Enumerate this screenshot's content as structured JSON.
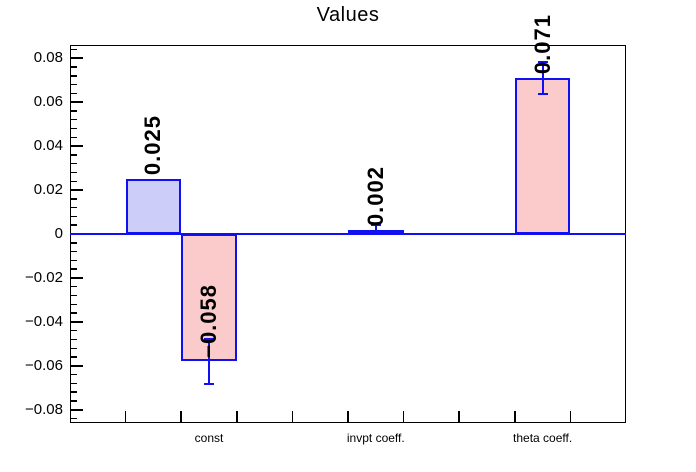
{
  "colors": {
    "bar_line": "#1010f0",
    "blue_fill": "#cdcdfa",
    "pink_fill": "#fbcaca",
    "axis": "#000000",
    "text": "#000000",
    "background": "#ffffff"
  },
  "chart_data": {
    "type": "bar",
    "title": "Values",
    "categories": [
      "const",
      "invpt coeff.",
      "theta coeff."
    ],
    "n_bins": 10,
    "ylim": [
      -0.086,
      0.086
    ],
    "y_major_step": 0.02,
    "y_minor_step": 0.004,
    "baseline_value": 0,
    "grid": false,
    "legend": false,
    "y_tick_labels": [
      {
        "value": 0.08,
        "text": "0.08"
      },
      {
        "value": 0.06,
        "text": "0.06"
      },
      {
        "value": 0.04,
        "text": "0.04"
      },
      {
        "value": 0.02,
        "text": "0.02"
      },
      {
        "value": 0,
        "text": "0"
      },
      {
        "value": -0.02,
        "text": "−0.02"
      },
      {
        "value": -0.04,
        "text": "−0.04"
      },
      {
        "value": -0.06,
        "text": "−0.06"
      },
      {
        "value": -0.08,
        "text": "−0.08"
      }
    ],
    "bars": [
      {
        "bin_index": 1,
        "value": 0.025,
        "label": "0.025",
        "error": 0,
        "fill": "blue"
      },
      {
        "bin_index": 2,
        "value": -0.058,
        "label": "−0.058",
        "error": 0.0103,
        "fill": "pink"
      },
      {
        "bin_index": 5,
        "value": 0.002,
        "label": "0.002",
        "error": 0.002,
        "fill": "pink"
      },
      {
        "bin_index": 8,
        "value": 0.071,
        "label": "0.071",
        "error": 0.0073,
        "fill": "pink"
      }
    ],
    "x_axis_labels": [
      {
        "bin_index": 2,
        "text": "const"
      },
      {
        "bin_index": 5,
        "text": "invpt coeff."
      },
      {
        "bin_index": 8,
        "text": "theta coeff."
      }
    ]
  }
}
